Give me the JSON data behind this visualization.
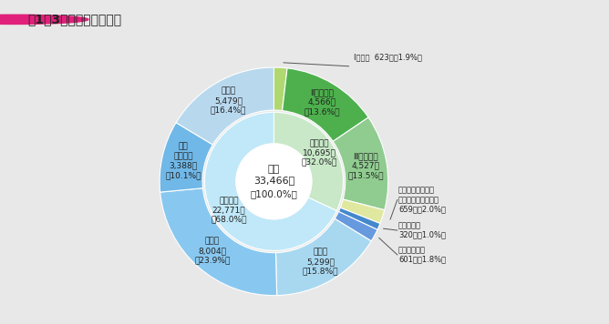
{
  "title": "図1－3　職員の採用状況",
  "total": 33466,
  "inner_ring": [
    {
      "label": "試験採用\n10,695人\n（32.0%）",
      "value": 10695,
      "color": "#c8e8c8"
    },
    {
      "label": "選考採用\n22,771人\n（68.0%）",
      "value": 22771,
      "color": "#c0e8f8"
    }
  ],
  "outer_ring": [
    {
      "label": "Ⅰ種試験",
      "value": 623,
      "color": "#b0d870",
      "ext_label": "Ⅰ種試験  623人（1.9%）",
      "ext": true
    },
    {
      "label": "Ⅱ種試験等\n4,566人\n（13.6%）",
      "value": 4566,
      "color": "#4db04d",
      "ext": false
    },
    {
      "label": "Ⅲ種試験等\n4,527人\n（13.5%）",
      "value": 4527,
      "color": "#90cc90",
      "ext": false
    },
    {
      "label": "国税専門官試験・\n労働基準監督官試験\n659人（2.0%）",
      "value": 659,
      "color": "#e0e8a0",
      "ext": true,
      "ext_label": "国税専門官試験・\n労働基準監督官試験\n659人（2.0%）"
    },
    {
      "label": "郵政一般職\n320人（1.0%）",
      "value": 320,
      "color": "#4488cc",
      "ext": true,
      "ext_label": "郵政一般職\n320人（1.0%）"
    },
    {
      "label": "技能・労務職\n601人（1.8%）",
      "value": 601,
      "color": "#6699dd",
      "ext": true,
      "ext_label": "技能・労務職\n601人（1.8%）"
    },
    {
      "label": "教育職\n5,299人\n（15.8%）",
      "value": 5299,
      "color": "#a8d8f0",
      "ext": false
    },
    {
      "label": "医療職\n8,004人\n（23.9%）",
      "value": 8004,
      "color": "#88c8f0",
      "ext": false
    },
    {
      "label": "郵政\n外務職等\n3,388人\n（10.1%）",
      "value": 3388,
      "color": "#70b8e8",
      "ext": false
    },
    {
      "label": "その他\n5,479人\n（16.4%）",
      "value": 5479,
      "color": "#b8d8ee",
      "ext": false
    }
  ],
  "bg_color": "#e8e8e8",
  "title_bar_color": "#d8d8d8",
  "bullet_color": "#e0207a"
}
